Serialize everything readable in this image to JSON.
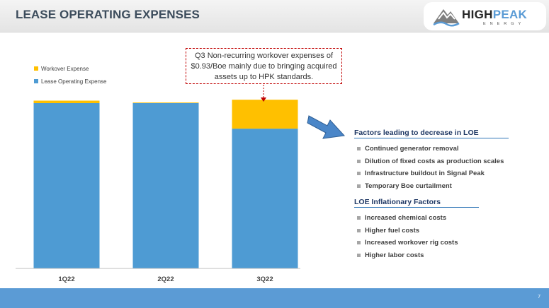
{
  "header": {
    "title": "LEASE OPERATING EXPENSES"
  },
  "logo": {
    "word_high": "HIGH",
    "word_peak": "PEAK",
    "sub": "ENERGY"
  },
  "callout": {
    "text": "Q3 Non-recurring workover expenses of $0.93/Boe mainly due to bringing acquired assets up to HPK standards."
  },
  "chart_data": {
    "type": "bar",
    "stacked": true,
    "categories": [
      "1Q22",
      "2Q22",
      "3Q22"
    ],
    "series": [
      {
        "name": "Lease Operating Expense",
        "color": "#4e9bd3",
        "values": [
          5.31,
          5.31,
          4.49
        ]
      },
      {
        "name": "Workover Expense",
        "color": "#ffc000",
        "values": [
          0.08,
          0.02,
          0.93
        ]
      }
    ],
    "ylim": [
      0,
      5.9
    ],
    "grid": false,
    "legend": "top-left",
    "title": "",
    "xlabel": "",
    "ylabel": ""
  },
  "factors": {
    "decrease_heading": "Factors leading to decrease in LOE",
    "decrease_items": [
      "Continued generator removal",
      "Dilution of fixed costs as production scales",
      "Infrastructure buildout in Signal Peak",
      "Temporary Boe curtailment"
    ],
    "inflation_heading": "LOE Inflationary  Factors",
    "inflation_items": [
      "Increased chemical costs",
      "Higher fuel costs",
      "Increased workover rig costs",
      "Higher labor costs"
    ]
  },
  "footer": {
    "page_number": "7"
  },
  "colors": {
    "footer": "#5b9bd5",
    "callout_border": "#c00000",
    "arrow": "#4a86c8"
  }
}
